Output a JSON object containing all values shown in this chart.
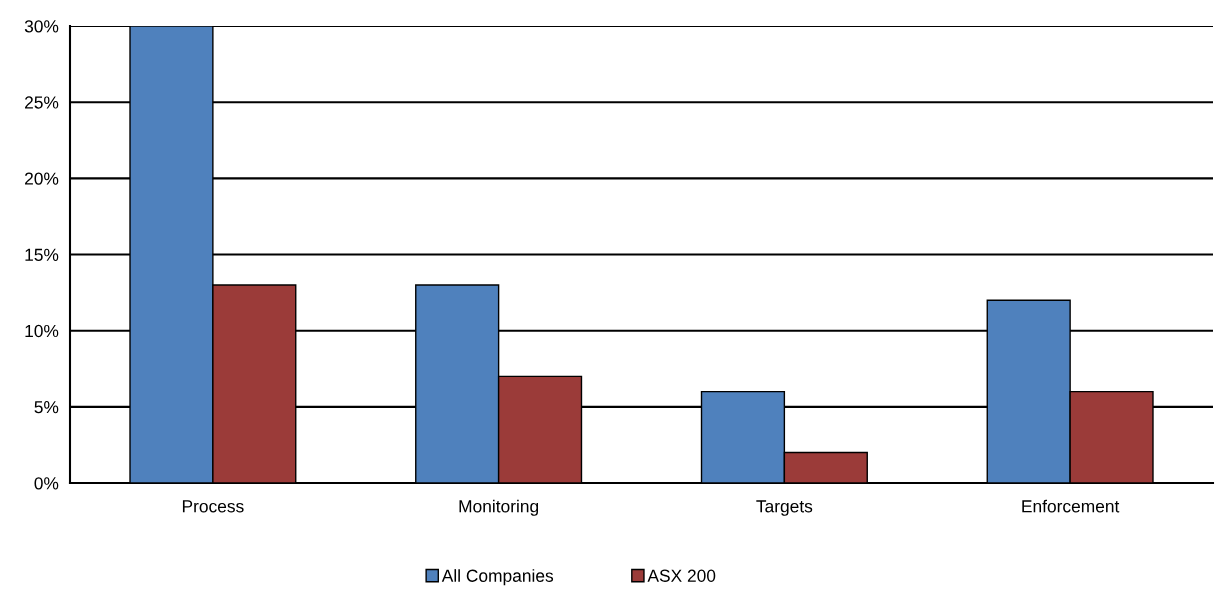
{
  "chart_data": {
    "type": "bar",
    "categories": [
      "Process",
      "Monitoring",
      "Targets",
      "Enforcement"
    ],
    "series": [
      {
        "name": "All Companies",
        "color": "#4f81bd",
        "values": [
          30,
          13,
          6,
          12
        ]
      },
      {
        "name": "ASX 200",
        "color": "#9b3b39",
        "values": [
          13,
          7,
          2,
          6
        ]
      }
    ],
    "ylim": [
      0,
      30
    ],
    "yticks": [
      {
        "value": 0,
        "label": "0%"
      },
      {
        "value": 5,
        "label": "5%"
      },
      {
        "value": 10,
        "label": "10%"
      },
      {
        "value": 15,
        "label": "15%"
      },
      {
        "value": 20,
        "label": "20%"
      },
      {
        "value": 25,
        "label": "25%"
      },
      {
        "value": 30,
        "label": "30%"
      }
    ],
    "grid": "y",
    "legend": "bottom"
  }
}
